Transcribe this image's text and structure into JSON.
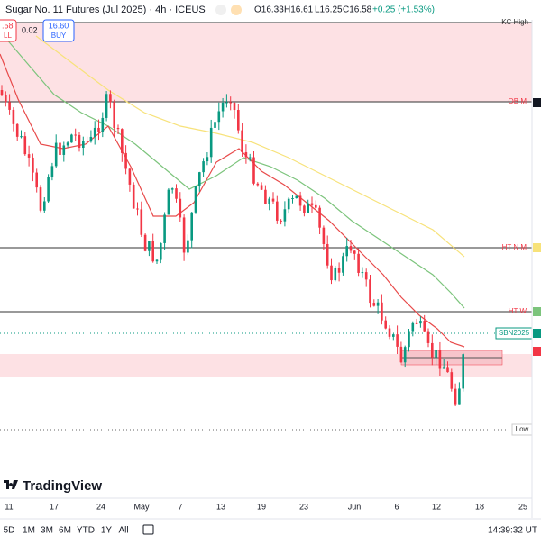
{
  "header": {
    "title": "Sugar No. 11 Futures (Jul 2025) · 4h · ICEUS",
    "open": "O16.33",
    "high": "H16.61",
    "low": "L16.25",
    "close": "C16.58",
    "change": "+0.25 (+1.53%)",
    "sell_price": ".58",
    "sell_label": "LL",
    "spread": "0.02",
    "buy_price": "16.60",
    "buy_label": "BUY"
  },
  "levels": [
    {
      "label": "KC High"
    },
    {
      "label": "OB M"
    },
    {
      "label": "HT N M"
    },
    {
      "label": "HT W"
    },
    {
      "label": "SBN2025"
    },
    {
      "label": "Low"
    }
  ],
  "x_axis": [
    "11",
    "17",
    "24",
    "May",
    "7",
    "13",
    "19",
    "23",
    "Jun",
    "6",
    "12",
    "18",
    "25"
  ],
  "brand": "TradingView",
  "toolbar": {
    "ranges": [
      "5D",
      "1M",
      "3M",
      "6M",
      "YTD",
      "1Y",
      "All"
    ],
    "time": "14:39:32 UT"
  }
}
